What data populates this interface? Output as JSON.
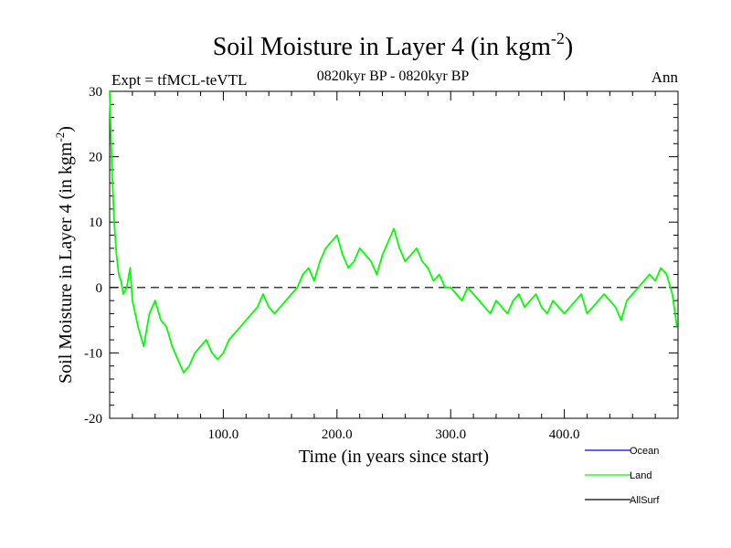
{
  "colors": {
    "ocean": "#0000ff",
    "land": "#00ff00",
    "allsurf": "#000000",
    "zero_line": "#000000"
  },
  "chart_data": {
    "type": "line",
    "title": "Soil Moisture in Layer 4 (in kgm",
    "title_exponent": "-2",
    "title_close": ")",
    "subtitle_left": "Expt = tfMCL-teVTL",
    "subtitle_center": "0820kyr BP - 0820kyr BP",
    "subtitle_right": "Ann",
    "xlabel": "Time (in years since start)",
    "ylabel": "Soil Moisture in Layer 4 (in kgm",
    "ylabel_exponent": "-2",
    "ylabel_close": ")",
    "xlim": [
      0,
      500
    ],
    "ylim": [
      -20,
      30
    ],
    "x_ticks": [
      {
        "value": 100,
        "label": "100.0"
      },
      {
        "value": 200,
        "label": "200.0"
      },
      {
        "value": 300,
        "label": "300.0"
      },
      {
        "value": 400,
        "label": "400.0"
      }
    ],
    "y_ticks": [
      {
        "value": 30,
        "label": "30"
      },
      {
        "value": 20,
        "label": "20"
      },
      {
        "value": 10,
        "label": "10"
      },
      {
        "value": 0,
        "label": "0"
      },
      {
        "value": -10,
        "label": "-10"
      },
      {
        "value": -20,
        "label": "-20"
      }
    ],
    "reference_line": {
      "y": 0,
      "style": "dashed"
    },
    "legend": [
      {
        "name": "Ocean",
        "color_key": "ocean"
      },
      {
        "name": "Land",
        "color_key": "land"
      },
      {
        "name": "AllSurf",
        "color_key": "allsurf"
      }
    ],
    "series": [
      {
        "name": "Land",
        "color_key": "land",
        "x": [
          0,
          2,
          4,
          6,
          8,
          10,
          12,
          15,
          18,
          20,
          25,
          30,
          35,
          40,
          45,
          50,
          55,
          60,
          65,
          70,
          75,
          80,
          85,
          90,
          95,
          100,
          105,
          110,
          115,
          120,
          125,
          130,
          135,
          140,
          145,
          150,
          155,
          160,
          165,
          170,
          175,
          180,
          185,
          190,
          195,
          200,
          205,
          210,
          215,
          220,
          225,
          230,
          235,
          240,
          245,
          250,
          255,
          260,
          265,
          270,
          275,
          280,
          285,
          290,
          295,
          300,
          305,
          310,
          315,
          320,
          325,
          330,
          335,
          340,
          345,
          350,
          355,
          360,
          365,
          370,
          375,
          380,
          385,
          390,
          395,
          400,
          405,
          410,
          415,
          420,
          425,
          430,
          435,
          440,
          445,
          450,
          455,
          460,
          465,
          470,
          475,
          480,
          485,
          490,
          495,
          499
        ],
        "y": [
          30,
          18,
          10,
          5,
          2,
          1,
          -1,
          0,
          3,
          -2,
          -6,
          -9,
          -4,
          -2,
          -5,
          -6,
          -9,
          -11,
          -13,
          -12,
          -10,
          -9,
          -8,
          -10,
          -11,
          -10,
          -8,
          -7,
          -6,
          -5,
          -4,
          -3,
          -1,
          -3,
          -4,
          -3,
          -2,
          -1,
          0,
          2,
          3,
          1,
          4,
          6,
          7,
          8,
          5,
          3,
          4,
          6,
          5,
          4,
          2,
          5,
          7,
          9,
          6,
          4,
          5,
          6,
          4,
          3,
          1,
          2,
          0,
          0,
          -1,
          -2,
          0,
          -1,
          -2,
          -3,
          -4,
          -2,
          -3,
          -4,
          -2,
          -1,
          -3,
          -2,
          -1,
          -3,
          -4,
          -2,
          -3,
          -4,
          -3,
          -2,
          -1,
          -4,
          -3,
          -2,
          -1,
          -2,
          -3,
          -5,
          -2,
          -1,
          0,
          1,
          2,
          1,
          3,
          2,
          -1,
          -6
        ]
      }
    ]
  }
}
